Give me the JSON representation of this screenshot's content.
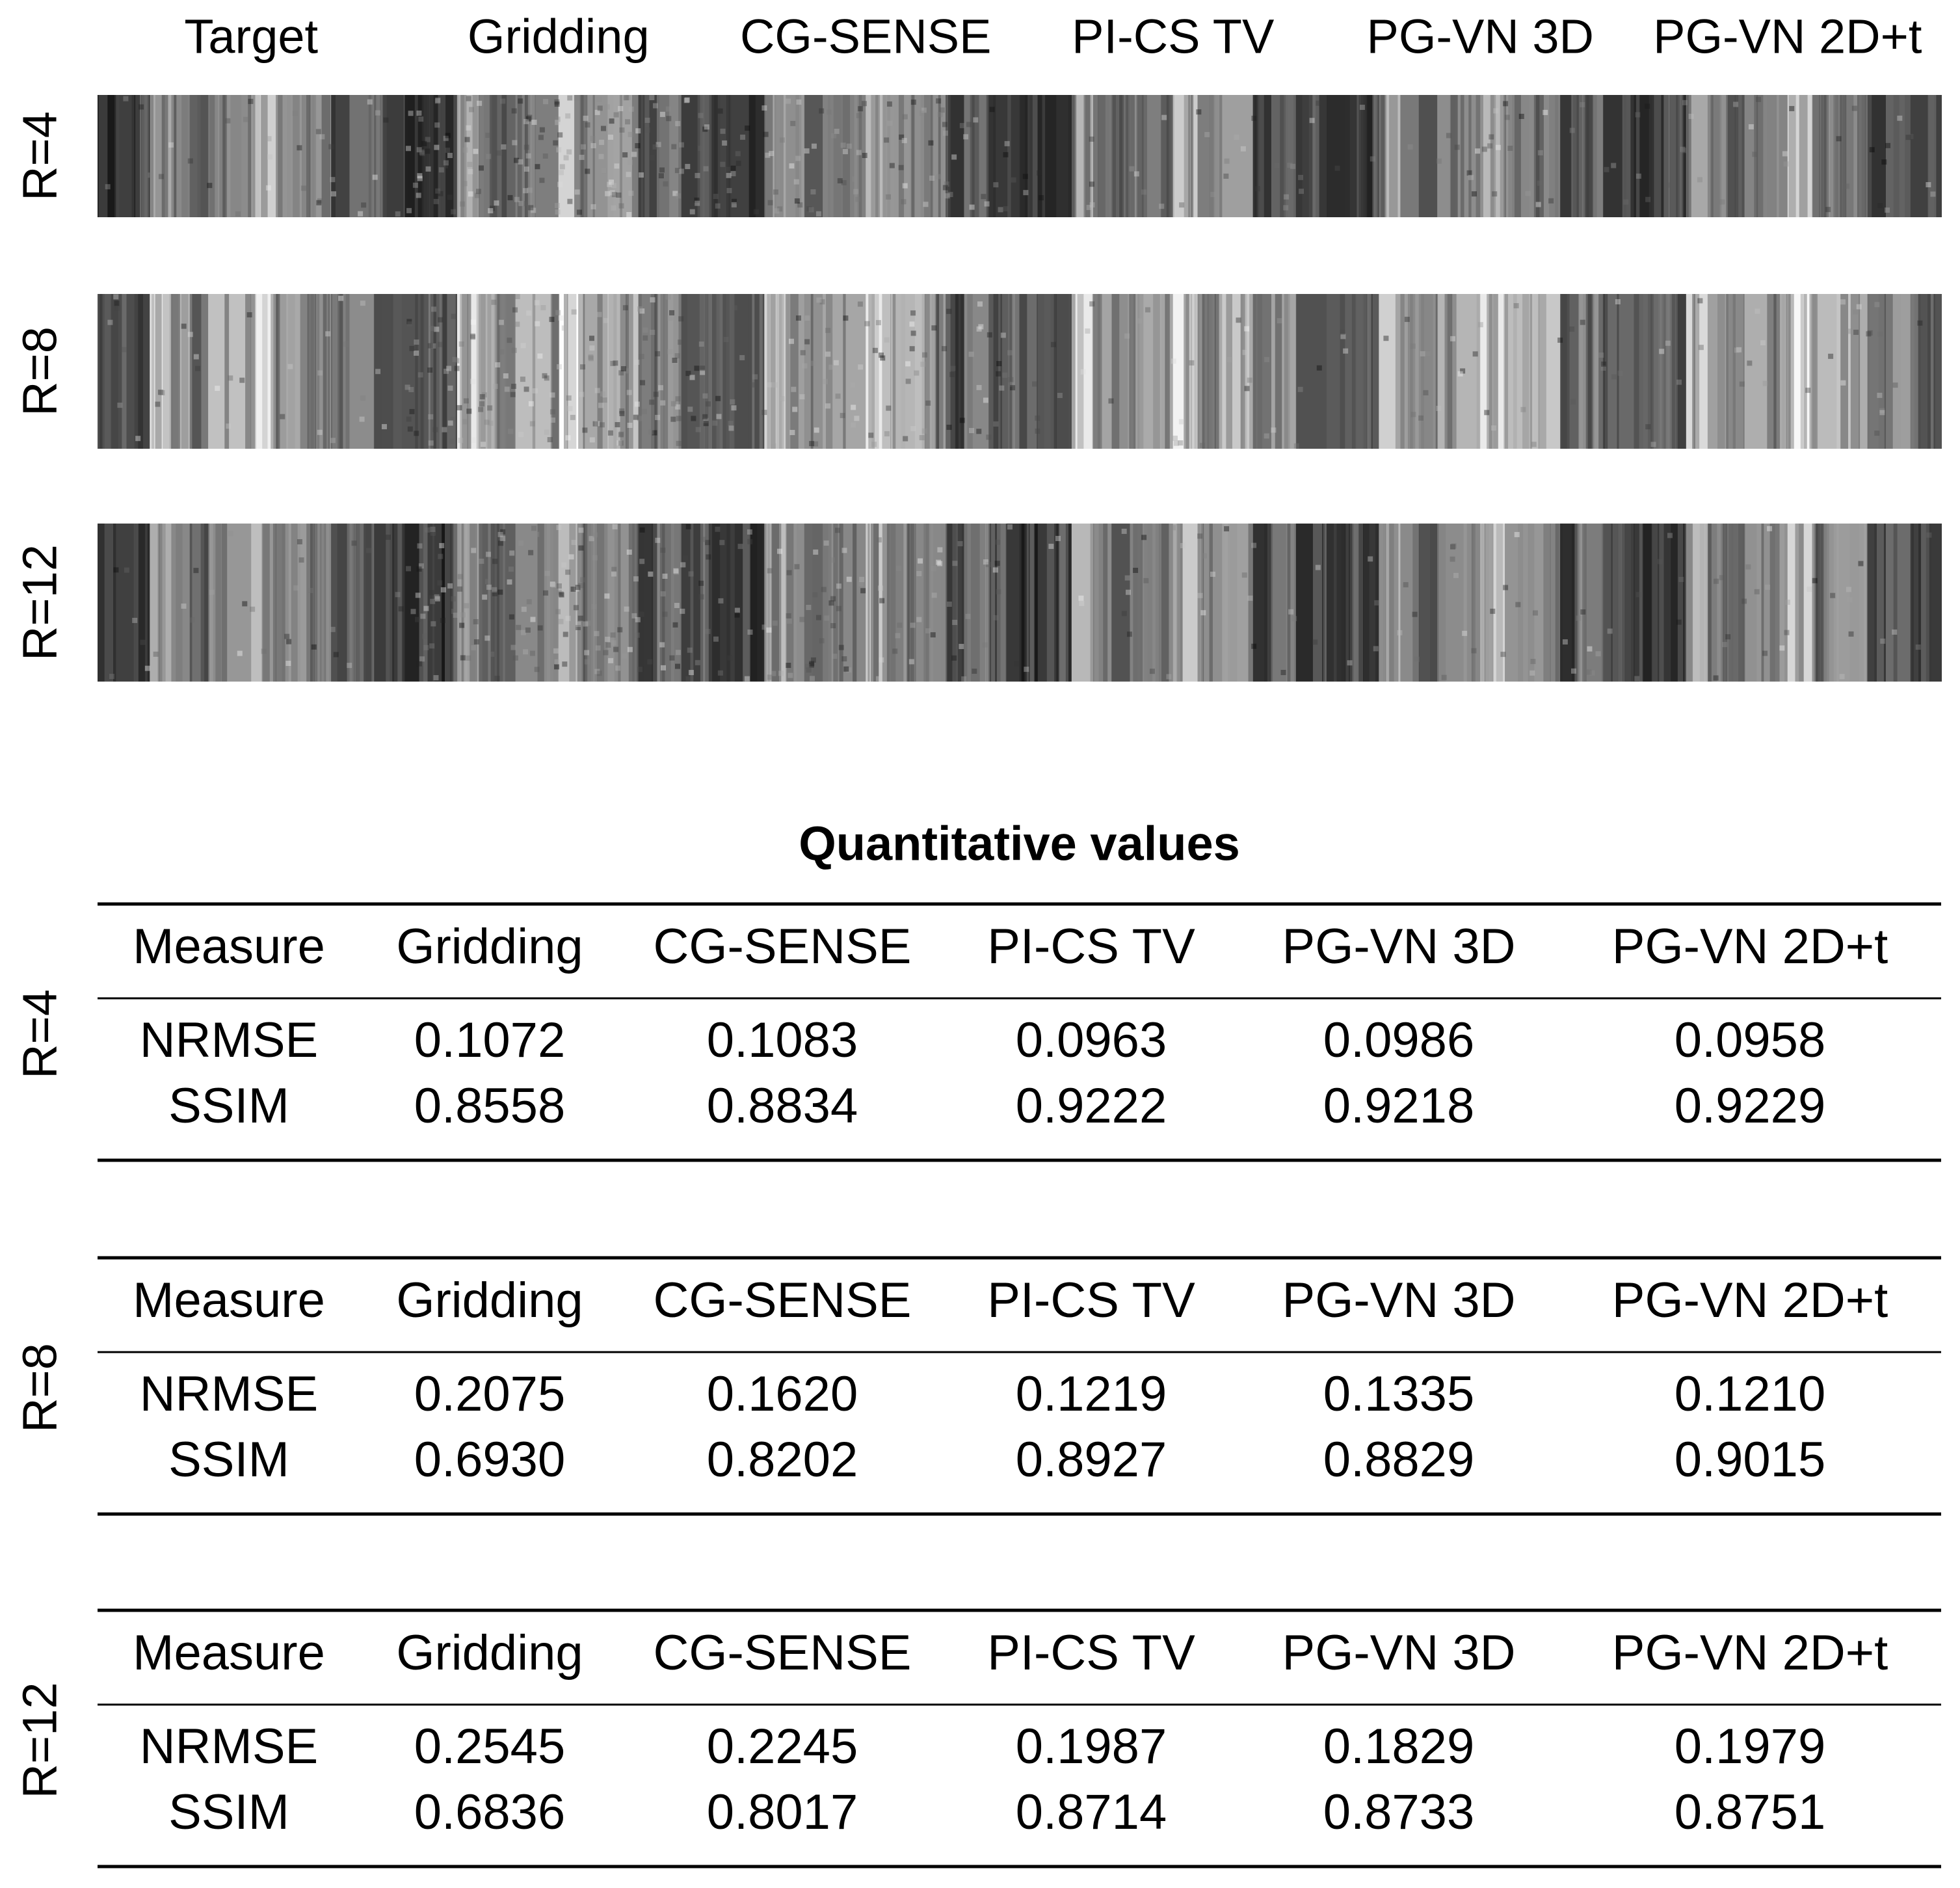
{
  "figure": {
    "column_headers": [
      "Target",
      "Gridding",
      "CG-SENSE",
      "PI-CS TV",
      "PG-VN 3D",
      "PG-VN 2D+t"
    ],
    "row_labels": [
      "R=4",
      "R=8",
      "R=12"
    ]
  },
  "table": {
    "title": "Quantitative values",
    "blocks": [
      {
        "label": "R=4",
        "header": [
          "Measure",
          "Gridding",
          "CG-SENSE",
          "PI-CS TV",
          "PG-VN 3D",
          "PG-VN 2D+t"
        ],
        "rows": [
          [
            "NRMSE",
            "0.1072",
            "0.1083",
            "0.0963",
            "0.0986",
            "0.0958"
          ],
          [
            "SSIM",
            "0.8558",
            "0.8834",
            "0.9222",
            "0.9218",
            "0.9229"
          ]
        ]
      },
      {
        "label": "R=8",
        "header": [
          "Measure",
          "Gridding",
          "CG-SENSE",
          "PI-CS TV",
          "PG-VN 3D",
          "PG-VN 2D+t"
        ],
        "rows": [
          [
            "NRMSE",
            "0.2075",
            "0.1620",
            "0.1219",
            "0.1335",
            "0.1210"
          ],
          [
            "SSIM",
            "0.6930",
            "0.8202",
            "0.8927",
            "0.8829",
            "0.9015"
          ]
        ]
      },
      {
        "label": "R=12",
        "header": [
          "Measure",
          "Gridding",
          "CG-SENSE",
          "PI-CS TV",
          "PG-VN 3D",
          "PG-VN 2D+t"
        ],
        "rows": [
          [
            "NRMSE",
            "0.2545",
            "0.2245",
            "0.1987",
            "0.1829",
            "0.1979"
          ],
          [
            "SSIM",
            "0.6836",
            "0.8017",
            "0.8714",
            "0.8733",
            "0.8751"
          ]
        ]
      }
    ]
  }
}
